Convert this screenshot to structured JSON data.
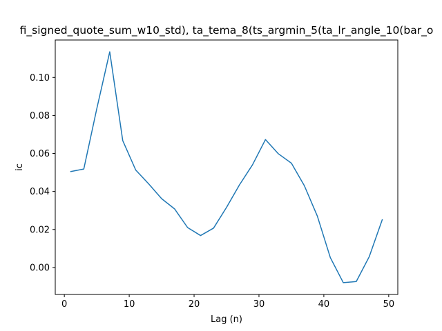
{
  "chart_data": {
    "type": "line",
    "title": "fi_signed_quote_sum_w10_std), ta_tema_8(ts_argmin_5(ta_lr_angle_10(bar_o",
    "xlabel": "Lag (n)",
    "ylabel": "ic",
    "xlim": [
      -1.4,
      51.4
    ],
    "ylim": [
      -0.0142,
      0.1197
    ],
    "xticks": [
      0,
      10,
      20,
      30,
      40,
      50
    ],
    "yticks": [
      0.0,
      0.02,
      0.04,
      0.06,
      0.08,
      0.1
    ],
    "ytick_labels": [
      "0.00",
      "0.02",
      "0.04",
      "0.06",
      "0.08",
      "0.10"
    ],
    "grid": false,
    "line_color": "#1f77b4",
    "series": [
      {
        "x": [
          1,
          3,
          5,
          7,
          9,
          11,
          13,
          15,
          17,
          19,
          21,
          23,
          25,
          27,
          29,
          31,
          33,
          35,
          37,
          39,
          41,
          43,
          45,
          47,
          49
        ],
        "values": [
          0.0505,
          0.0518,
          0.0835,
          0.1135,
          0.0668,
          0.0513,
          0.044,
          0.0362,
          0.0308,
          0.021,
          0.0168,
          0.0207,
          0.0316,
          0.0435,
          0.054,
          0.0673,
          0.0598,
          0.0549,
          0.043,
          0.027,
          0.0052,
          -0.008,
          -0.0074,
          0.0057,
          0.0251
        ]
      }
    ]
  }
}
